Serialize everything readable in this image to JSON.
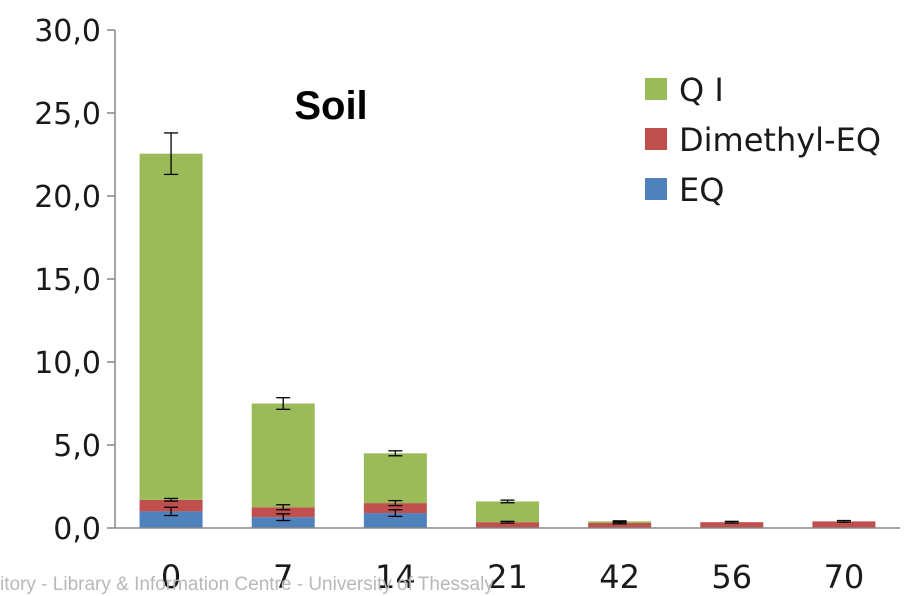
{
  "watermark": "itory - Library & Information Centre - University of Thessaly",
  "chart_data": {
    "type": "bar",
    "stacked": true,
    "title": "Soil",
    "xlabel": "",
    "ylabel": "",
    "categories": [
      "0",
      "7",
      "14",
      "21",
      "42",
      "56",
      "70"
    ],
    "ylim": [
      0,
      30
    ],
    "yticks": [
      "0,0",
      "5,0",
      "10,0",
      "15,0",
      "20,0",
      "25,0",
      "30,0"
    ],
    "ytick_values": [
      0,
      5,
      10,
      15,
      20,
      25,
      30
    ],
    "grid": false,
    "legend_position": "top-right",
    "series": [
      {
        "name": "EQ",
        "color": "#4f81bd",
        "values": [
          1.0,
          0.65,
          0.9,
          0,
          0,
          0,
          0
        ]
      },
      {
        "name": "Dimethyl-EQ",
        "color": "#c0504d",
        "values": [
          0.7,
          0.6,
          0.6,
          0.35,
          0.3,
          0.35,
          0.4
        ]
      },
      {
        "name": "Q I",
        "color": "#9bbb59",
        "values": [
          20.85,
          6.25,
          3.0,
          1.25,
          0.1,
          0,
          0
        ]
      }
    ],
    "error_bars": {
      "EQ": [
        0.25,
        0.2,
        0.2,
        null,
        null,
        null,
        null
      ],
      "Dimethyl-EQ": [
        0.08,
        0.15,
        0.15,
        0.05,
        0.05,
        0.05,
        0.05
      ],
      "Q I": [
        1.25,
        0.35,
        0.15,
        0.08,
        0.03,
        null,
        null
      ]
    }
  }
}
